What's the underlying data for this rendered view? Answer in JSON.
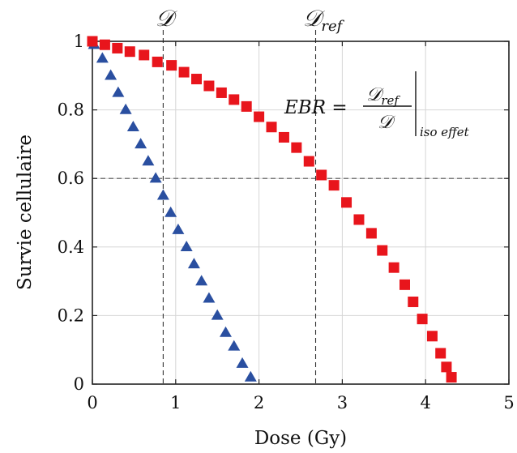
{
  "chart_data": {
    "type": "scatter",
    "xlabel": "Dose (Gy)",
    "ylabel": "Survie cellulaire",
    "xlim": [
      0,
      5
    ],
    "ylim": [
      0,
      1
    ],
    "xticks": [
      "0",
      "1",
      "2",
      "3",
      "4",
      "5"
    ],
    "yticks": [
      "0",
      "0.2",
      "0.4",
      "0.6",
      "0.8",
      "1"
    ],
    "grid": true,
    "series": [
      {
        "marker": "triangle",
        "color": "#2a4fa0",
        "points": [
          [
            0.02,
            0.99
          ],
          [
            0.12,
            0.95
          ],
          [
            0.22,
            0.9
          ],
          [
            0.31,
            0.85
          ],
          [
            0.4,
            0.8
          ],
          [
            0.49,
            0.75
          ],
          [
            0.58,
            0.7
          ],
          [
            0.67,
            0.65
          ],
          [
            0.76,
            0.6
          ],
          [
            0.85,
            0.55
          ],
          [
            0.94,
            0.5
          ],
          [
            1.03,
            0.45
          ],
          [
            1.13,
            0.4
          ],
          [
            1.22,
            0.35
          ],
          [
            1.31,
            0.3
          ],
          [
            1.4,
            0.25
          ],
          [
            1.5,
            0.2
          ],
          [
            1.6,
            0.15
          ],
          [
            1.7,
            0.11
          ],
          [
            1.8,
            0.06
          ],
          [
            1.9,
            0.02
          ]
        ]
      },
      {
        "marker": "square",
        "color": "#e8151c",
        "points": [
          [
            0.0,
            1.0
          ],
          [
            0.15,
            0.99
          ],
          [
            0.3,
            0.98
          ],
          [
            0.45,
            0.97
          ],
          [
            0.62,
            0.96
          ],
          [
            0.78,
            0.94
          ],
          [
            0.95,
            0.93
          ],
          [
            1.1,
            0.91
          ],
          [
            1.25,
            0.89
          ],
          [
            1.4,
            0.87
          ],
          [
            1.55,
            0.85
          ],
          [
            1.7,
            0.83
          ],
          [
            1.85,
            0.81
          ],
          [
            2.0,
            0.78
          ],
          [
            2.15,
            0.75
          ],
          [
            2.3,
            0.72
          ],
          [
            2.45,
            0.69
          ],
          [
            2.6,
            0.65
          ],
          [
            2.75,
            0.61
          ],
          [
            2.9,
            0.58
          ],
          [
            3.05,
            0.53
          ],
          [
            3.2,
            0.48
          ],
          [
            3.35,
            0.44
          ],
          [
            3.48,
            0.39
          ],
          [
            3.62,
            0.34
          ],
          [
            3.75,
            0.29
          ],
          [
            3.85,
            0.24
          ],
          [
            3.96,
            0.19
          ],
          [
            4.08,
            0.14
          ],
          [
            4.18,
            0.09
          ],
          [
            4.25,
            0.05
          ],
          [
            4.31,
            0.02
          ]
        ]
      }
    ],
    "reference_lines": {
      "y": 0.6,
      "x_D": 0.85,
      "x_Dref": 2.68
    },
    "annotations": {
      "label_D": "𝒟",
      "label_Dref_main": "𝒟",
      "label_Dref_sub": "ref",
      "formula_lhs": "EBR =",
      "formula_num_main": "𝒟",
      "formula_num_sub": "ref",
      "formula_den": "𝒟",
      "formula_sub": "iso effet"
    }
  }
}
